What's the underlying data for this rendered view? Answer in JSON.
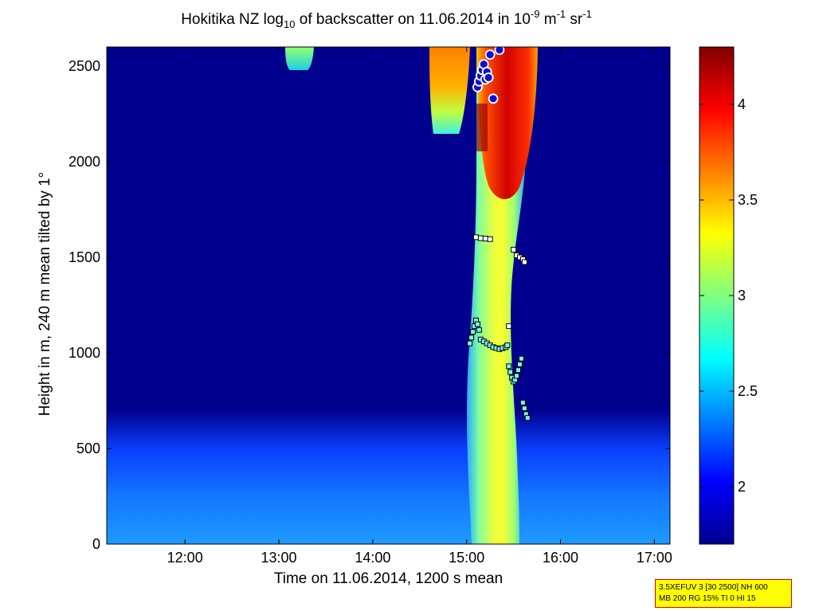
{
  "title": {
    "pre": "Hokitika NZ log",
    "sub": "10",
    "mid": " of backscatter on 11.06.2014 in 10",
    "sup1": "-9",
    "unit1": " m",
    "sup2": "-1",
    "unit2": " sr",
    "sup3": "-1"
  },
  "xlabel": "Time on 11.06.2014, 1200 s mean",
  "ylabel": "Height in m, 240 m mean tilted by 1°",
  "info_box": {
    "line1": "3.5XEFUV 3 [30 2500] NH 600",
    "line2": "MB 200 RG 15% TI 0 HI 15"
  },
  "colors": {
    "background_low": "#00008f",
    "colormap": "jet"
  },
  "chart_data": {
    "type": "heatmap",
    "x_range": [
      "11:10",
      "17:10"
    ],
    "x_ticks": [
      "12:00",
      "13:00",
      "14:00",
      "15:00",
      "16:00",
      "17:00"
    ],
    "y_range": [
      0,
      2600
    ],
    "y_ticks": [
      "0",
      "500",
      "1000",
      "1500",
      "2000",
      "2500"
    ],
    "colorbar": {
      "range": [
        1.7,
        4.3
      ],
      "ticks": [
        "2",
        "2.5",
        "3",
        "3.5",
        "4"
      ],
      "colormap": "jet"
    },
    "regions": [
      {
        "name": "boundary layer",
        "time_start": "11:10",
        "time_end": "17:10",
        "height_top": 680,
        "log_backscatter": 2.3
      },
      {
        "name": "plume column",
        "time_start": "15:00",
        "time_end": "15:45",
        "height_bottom": 0,
        "height_top": 2600,
        "log_backscatter": 3.2
      },
      {
        "name": "upper plume core",
        "time_start": "15:05",
        "time_end": "15:45",
        "height_bottom": 1750,
        "height_top": 2600,
        "log_backscatter": 4.2
      },
      {
        "name": "left upper patch",
        "time_start": "14:43",
        "time_end": "15:00",
        "height_bottom": 2150,
        "height_top": 2600,
        "log_backscatter": 3.6
      },
      {
        "name": "small cloud",
        "time_start": "13:00",
        "time_end": "13:15",
        "height_bottom": 2480,
        "height_top": 2600,
        "log_backscatter": 2.8
      }
    ],
    "markers_white_squares": [
      {
        "time": "15:06",
        "height": 1605
      },
      {
        "time": "15:09",
        "height": 1600
      },
      {
        "time": "15:12",
        "height": 1598
      },
      {
        "time": "15:15",
        "height": 1595
      },
      {
        "time": "15:27",
        "height": 1140
      },
      {
        "time": "15:30",
        "height": 1540
      },
      {
        "time": "15:32",
        "height": 1510
      },
      {
        "time": "15:34",
        "height": 1500
      },
      {
        "time": "15:36",
        "height": 1490
      },
      {
        "time": "15:37",
        "height": 1475
      }
    ],
    "markers_cyan_squares": [
      {
        "time": "15:02",
        "height": 1050
      },
      {
        "time": "15:03",
        "height": 1080
      },
      {
        "time": "15:04",
        "height": 1110
      },
      {
        "time": "15:05",
        "height": 1140
      },
      {
        "time": "15:06",
        "height": 1170
      },
      {
        "time": "15:07",
        "height": 1150
      },
      {
        "time": "15:08",
        "height": 1120
      },
      {
        "time": "15:09",
        "height": 1070
      },
      {
        "time": "15:11",
        "height": 1060
      },
      {
        "time": "15:13",
        "height": 1050
      },
      {
        "time": "15:15",
        "height": 1040
      },
      {
        "time": "15:17",
        "height": 1030
      },
      {
        "time": "15:19",
        "height": 1025
      },
      {
        "time": "15:21",
        "height": 1020
      },
      {
        "time": "15:23",
        "height": 1025
      },
      {
        "time": "15:25",
        "height": 1030
      },
      {
        "time": "15:26",
        "height": 1040
      },
      {
        "time": "15:27",
        "height": 930
      },
      {
        "time": "15:28",
        "height": 900
      },
      {
        "time": "15:29",
        "height": 870
      },
      {
        "time": "15:30",
        "height": 850
      },
      {
        "time": "15:31",
        "height": 860
      },
      {
        "time": "15:32",
        "height": 880
      },
      {
        "time": "15:33",
        "height": 910
      },
      {
        "time": "15:34",
        "height": 940
      },
      {
        "time": "15:35",
        "height": 970
      },
      {
        "time": "15:36",
        "height": 740
      },
      {
        "time": "15:37",
        "height": 710
      },
      {
        "time": "15:38",
        "height": 680
      },
      {
        "time": "15:39",
        "height": 660
      }
    ],
    "markers_circles": [
      {
        "time": "15:07",
        "height": 2390
      },
      {
        "time": "15:08",
        "height": 2420
      },
      {
        "time": "15:09",
        "height": 2450
      },
      {
        "time": "15:10",
        "height": 2480
      },
      {
        "time": "15:11",
        "height": 2510
      },
      {
        "time": "15:12",
        "height": 2430
      },
      {
        "time": "15:13",
        "height": 2470
      },
      {
        "time": "15:14",
        "height": 2440
      },
      {
        "time": "15:15",
        "height": 2560
      },
      {
        "time": "15:17",
        "height": 2330
      },
      {
        "time": "15:21",
        "height": 2585
      }
    ]
  }
}
